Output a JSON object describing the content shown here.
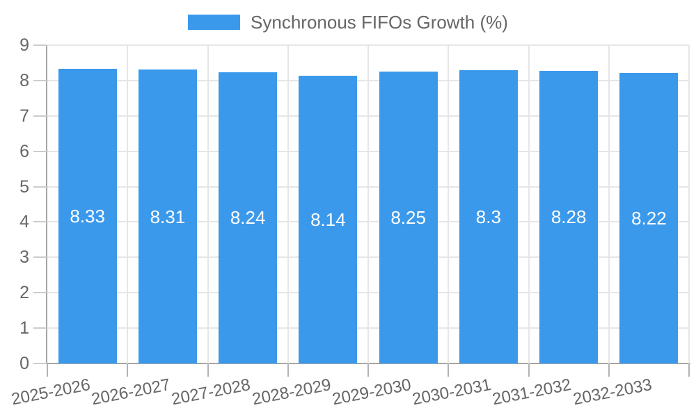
{
  "legend": {
    "label": "Synchronous FIFOs Growth (%)"
  },
  "colors": {
    "bar": "#3b99ec",
    "bar_label_text": "#ffffff",
    "axis_text": "#666666",
    "gridline": "#e6e6e6",
    "axis_line": "#a6a6a6"
  },
  "chart_data": {
    "type": "bar",
    "title": "",
    "legend_entries": [
      "Synchronous FIFOs Growth (%)"
    ],
    "legend_position": "top",
    "categories": [
      "2025-2026",
      "2026-2027",
      "2027-2028",
      "2028-2029",
      "2029-2030",
      "2030-2031",
      "2031-2032",
      "2032-2033"
    ],
    "values": [
      8.33,
      8.31,
      8.24,
      8.14,
      8.25,
      8.3,
      8.28,
      8.22
    ],
    "value_labels": [
      "8.33",
      "8.31",
      "8.24",
      "8.14",
      "8.25",
      "8.3",
      "8.28",
      "8.22"
    ],
    "xlabel": "",
    "ylabel": "",
    "ylim": [
      0,
      9
    ],
    "yticks": [
      0,
      1,
      2,
      3,
      4,
      5,
      6,
      7,
      8,
      9
    ],
    "grid": true,
    "bar_color": "#3b99ec",
    "label_color": "#ffffff"
  }
}
